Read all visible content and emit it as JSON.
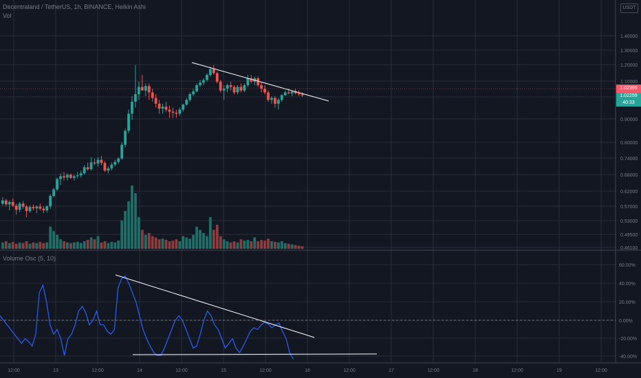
{
  "header": {
    "symbol_line": "Decentraland / TetherUS, 1h, BINANCE, Heikin Ashi",
    "vol_label": "Vol",
    "osc_label": "Volume Osc (5, 10)",
    "currency_badge": "USDT"
  },
  "price_scale": {
    "ticks": [
      "1.40000",
      "1.30000",
      "1.20000",
      "1.10000",
      "1.00000",
      "0.90000",
      "0.80000",
      "0.74000",
      "0.68000",
      "0.62000",
      "0.57000",
      "0.53000",
      "0.49500",
      "0.46100"
    ],
    "last_price_red": "1.02395",
    "last_price_green": "1.02259",
    "countdown": "40:33"
  },
  "osc_scale": {
    "ticks": [
      "60.00%",
      "40.00%",
      "20.00%",
      "0.00%",
      "-20.00%",
      "-40.00%"
    ]
  },
  "time_axis": {
    "ticks": [
      "12:00",
      "13",
      "12:00",
      "14",
      "12:00",
      "15",
      "12:00",
      "16",
      "12:00",
      "17",
      "12:00",
      "18",
      "12:00",
      "19",
      "12:00"
    ]
  },
  "colors": {
    "up": "#26a69a",
    "down": "#ef5350",
    "osc_line": "#2962ff",
    "trendline": "#ffffff"
  },
  "chart_data": [
    {
      "type": "candlestick",
      "title": "Decentraland / TetherUS, 1h, BINANCE, Heikin Ashi",
      "y_scale": "log",
      "ylim": [
        0.461,
        1.4
      ],
      "x_range_bars": [
        0,
        149
      ],
      "candles": [
        [
          0.58,
          0.6,
          0.575,
          0.59
        ],
        [
          0.59,
          0.595,
          0.572,
          0.578
        ],
        [
          0.578,
          0.59,
          0.56,
          0.585
        ],
        [
          0.585,
          0.596,
          0.57,
          0.574
        ],
        [
          0.574,
          0.58,
          0.548,
          0.562
        ],
        [
          0.562,
          0.585,
          0.555,
          0.58
        ],
        [
          0.58,
          0.588,
          0.565,
          0.571
        ],
        [
          0.571,
          0.575,
          0.54,
          0.558
        ],
        [
          0.558,
          0.575,
          0.553,
          0.57
        ],
        [
          0.57,
          0.577,
          0.56,
          0.566
        ],
        [
          0.566,
          0.575,
          0.552,
          0.571
        ],
        [
          0.571,
          0.58,
          0.56,
          0.565
        ],
        [
          0.565,
          0.572,
          0.552,
          0.56
        ],
        [
          0.56,
          0.575,
          0.554,
          0.572
        ],
        [
          0.572,
          0.61,
          0.565,
          0.604
        ],
        [
          0.604,
          0.63,
          0.6,
          0.625
        ],
        [
          0.625,
          0.665,
          0.62,
          0.66
        ],
        [
          0.66,
          0.68,
          0.64,
          0.67
        ],
        [
          0.67,
          0.685,
          0.655,
          0.665
        ],
        [
          0.665,
          0.68,
          0.655,
          0.675
        ],
        [
          0.675,
          0.68,
          0.66,
          0.664
        ],
        [
          0.664,
          0.675,
          0.655,
          0.67
        ],
        [
          0.67,
          0.685,
          0.662,
          0.673
        ],
        [
          0.673,
          0.69,
          0.665,
          0.68
        ],
        [
          0.68,
          0.71,
          0.676,
          0.702
        ],
        [
          0.702,
          0.72,
          0.69,
          0.695
        ],
        [
          0.695,
          0.74,
          0.69,
          0.72
        ],
        [
          0.72,
          0.735,
          0.71,
          0.716
        ],
        [
          0.716,
          0.74,
          0.705,
          0.73
        ],
        [
          0.73,
          0.745,
          0.71,
          0.718
        ],
        [
          0.718,
          0.725,
          0.685,
          0.69
        ],
        [
          0.69,
          0.705,
          0.68,
          0.698
        ],
        [
          0.698,
          0.72,
          0.69,
          0.712
        ],
        [
          0.712,
          0.73,
          0.705,
          0.722
        ],
        [
          0.722,
          0.74,
          0.715,
          0.735
        ],
        [
          0.735,
          0.8,
          0.73,
          0.79
        ],
        [
          0.79,
          0.86,
          0.78,
          0.85
        ],
        [
          0.85,
          0.95,
          0.84,
          0.93
        ],
        [
          0.93,
          1.02,
          0.9,
          0.99
        ],
        [
          0.99,
          1.2,
          0.96,
          1.03
        ],
        [
          1.03,
          1.1,
          1.0,
          1.07
        ],
        [
          1.07,
          1.14,
          1.05,
          1.05
        ],
        [
          1.05,
          1.09,
          1.02,
          1.075
        ],
        [
          1.075,
          1.09,
          1.0,
          1.04
        ],
        [
          1.04,
          1.06,
          0.99,
          1.01
        ],
        [
          1.01,
          1.03,
          0.96,
          0.98
        ],
        [
          0.98,
          1.0,
          0.93,
          0.955
        ],
        [
          0.955,
          0.98,
          0.93,
          0.965
        ],
        [
          0.965,
          0.99,
          0.94,
          0.95
        ],
        [
          0.95,
          0.97,
          0.91,
          0.94
        ],
        [
          0.94,
          0.96,
          0.91,
          0.935
        ],
        [
          0.935,
          0.95,
          0.91,
          0.93
        ],
        [
          0.93,
          0.96,
          0.92,
          0.95
        ],
        [
          0.95,
          0.98,
          0.94,
          0.975
        ],
        [
          0.975,
          1.01,
          0.97,
          1.0
        ],
        [
          1.0,
          1.04,
          0.99,
          1.03
        ],
        [
          1.03,
          1.06,
          1.02,
          1.045
        ],
        [
          1.045,
          1.09,
          1.04,
          1.08
        ],
        [
          1.08,
          1.11,
          1.07,
          1.095
        ],
        [
          1.095,
          1.12,
          1.08,
          1.11
        ],
        [
          1.11,
          1.15,
          1.1,
          1.14
        ],
        [
          1.14,
          1.19,
          1.13,
          1.175
        ],
        [
          1.175,
          1.2,
          1.14,
          1.15
        ],
        [
          1.15,
          1.16,
          1.09,
          1.1
        ],
        [
          1.1,
          1.11,
          1.04,
          1.05
        ],
        [
          1.05,
          1.08,
          1.0,
          1.06
        ],
        [
          1.06,
          1.09,
          1.04,
          1.08
        ],
        [
          1.08,
          1.1,
          1.05,
          1.07
        ],
        [
          1.07,
          1.08,
          1.03,
          1.04
        ],
        [
          1.04,
          1.08,
          1.03,
          1.07
        ],
        [
          1.07,
          1.09,
          1.04,
          1.05
        ],
        [
          1.05,
          1.09,
          1.04,
          1.08
        ],
        [
          1.08,
          1.14,
          1.07,
          1.12
        ],
        [
          1.12,
          1.14,
          1.09,
          1.1
        ],
        [
          1.1,
          1.13,
          1.08,
          1.12
        ],
        [
          1.12,
          1.13,
          1.07,
          1.08
        ],
        [
          1.08,
          1.1,
          1.04,
          1.06
        ],
        [
          1.06,
          1.08,
          1.03,
          1.04
        ],
        [
          1.04,
          1.05,
          0.99,
          1.0
        ],
        [
          1.0,
          1.02,
          0.98,
          1.01
        ],
        [
          1.01,
          1.02,
          0.96,
          0.98
        ],
        [
          0.98,
          1.01,
          0.95,
          1.0
        ],
        [
          1.0,
          1.03,
          0.99,
          1.025
        ],
        [
          1.025,
          1.05,
          1.02,
          1.04
        ],
        [
          1.04,
          1.06,
          1.03,
          1.035
        ],
        [
          1.035,
          1.05,
          1.02,
          1.045
        ],
        [
          1.045,
          1.06,
          1.03,
          1.035
        ],
        [
          1.035,
          1.05,
          1.02,
          1.03
        ],
        [
          1.03,
          1.04,
          1.015,
          1.024
        ]
      ],
      "trendline": {
        "from": [
          0,
          1.22
        ],
        "to": [
          0,
          1.0
        ]
      }
    },
    {
      "type": "bar",
      "title": "Vol",
      "values_relative": [
        0.1,
        0.12,
        0.09,
        0.11,
        0.08,
        0.1,
        0.09,
        0.12,
        0.08,
        0.1,
        0.09,
        0.11,
        0.09,
        0.1,
        0.35,
        0.28,
        0.22,
        0.15,
        0.12,
        0.1,
        0.09,
        0.1,
        0.11,
        0.09,
        0.12,
        0.14,
        0.18,
        0.15,
        0.2,
        0.1,
        0.12,
        0.09,
        0.11,
        0.1,
        0.13,
        0.45,
        0.6,
        0.75,
        1.0,
        0.88,
        0.5,
        0.3,
        0.22,
        0.25,
        0.2,
        0.18,
        0.15,
        0.16,
        0.14,
        0.12,
        0.13,
        0.15,
        0.12,
        0.2,
        0.18,
        0.16,
        0.22,
        0.35,
        0.3,
        0.25,
        0.2,
        0.5,
        0.3,
        0.38,
        0.2,
        0.15,
        0.12,
        0.1,
        0.12,
        0.1,
        0.15,
        0.13,
        0.14,
        0.12,
        0.18,
        0.12,
        0.14,
        0.13,
        0.16,
        0.12,
        0.11,
        0.1,
        0.12,
        0.09,
        0.08,
        0.07,
        0.06,
        0.05,
        0.04
      ]
    },
    {
      "type": "line",
      "title": "Volume Osc (5, 10)",
      "ylabel": "%",
      "ylim": [
        -45,
        65
      ],
      "values": [
        5,
        0,
        -5,
        -10,
        -15,
        -20,
        -25,
        -20,
        -23,
        -28,
        -15,
        30,
        38,
        20,
        -5,
        -15,
        -10,
        -20,
        -38,
        -20,
        -15,
        -5,
        10,
        15,
        8,
        -5,
        0,
        10,
        -5,
        -5,
        -12,
        -15,
        -10,
        35,
        45,
        48,
        40,
        30,
        20,
        5,
        -10,
        -20,
        -28,
        -35,
        -38,
        -38,
        -30,
        -20,
        -10,
        0,
        5,
        0,
        -10,
        -20,
        -30,
        -28,
        -15,
        0,
        10,
        5,
        -5,
        -10,
        -20,
        -30,
        -25,
        -20,
        -30,
        -35,
        -28,
        -20,
        -12,
        -8,
        -10,
        -5,
        -2,
        -4,
        -8,
        -5,
        -3,
        -12,
        -20,
        -35,
        -42
      ],
      "trendlines": [
        {
          "from": [
            37,
            48
          ],
          "to": [
            122,
            -18
          ]
        },
        {
          "from": [
            37,
            -38
          ],
          "to": [
            145,
            -37
          ]
        }
      ]
    }
  ]
}
